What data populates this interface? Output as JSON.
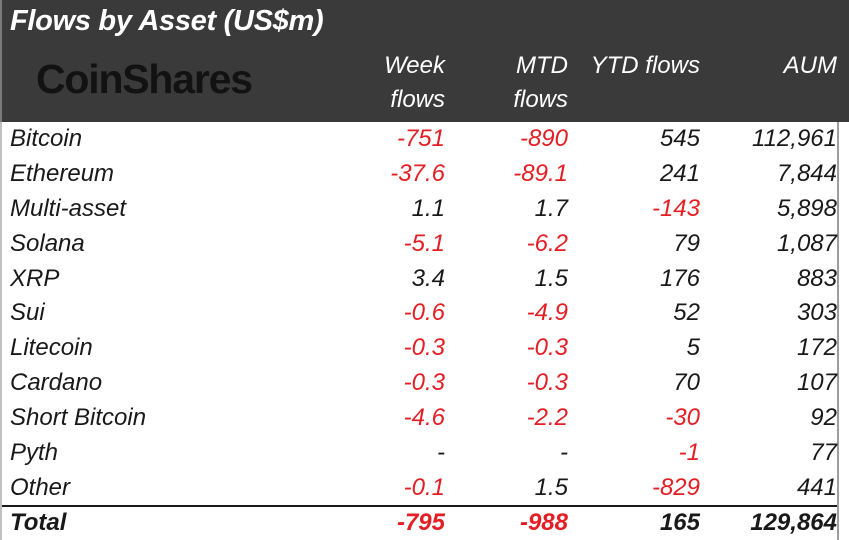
{
  "header": {
    "title": "Flows by Asset (US$m)",
    "logo_text": "CoinShares",
    "columns": [
      {
        "id": "week",
        "line1": "Week",
        "line2": "flows"
      },
      {
        "id": "mtd",
        "line1": "MTD",
        "line2": "flows"
      },
      {
        "id": "ytd",
        "line1": "",
        "line2": "YTD flows"
      },
      {
        "id": "aum",
        "line1": "",
        "line2": "AUM"
      }
    ]
  },
  "colors": {
    "header_bg": "#3a3a3a",
    "header_text": "#ffffff",
    "logo_color": "#121212",
    "body_text": "#191919",
    "negative": "#e31e24",
    "border_gray": "#9e9e9e",
    "total_rule": "#1a1a1a"
  },
  "table": {
    "rows": [
      {
        "asset": "Bitcoin",
        "week": "-751",
        "mtd": "-890",
        "ytd": "545",
        "aum": "112,961"
      },
      {
        "asset": "Ethereum",
        "week": "-37.6",
        "mtd": "-89.1",
        "ytd": "241",
        "aum": "7,844"
      },
      {
        "asset": "Multi-asset",
        "week": "1.1",
        "mtd": "1.7",
        "ytd": "-143",
        "aum": "5,898"
      },
      {
        "asset": "Solana",
        "week": "-5.1",
        "mtd": "-6.2",
        "ytd": "79",
        "aum": "1,087"
      },
      {
        "asset": "XRP",
        "week": "3.4",
        "mtd": "1.5",
        "ytd": "176",
        "aum": "883"
      },
      {
        "asset": "Sui",
        "week": "-0.6",
        "mtd": "-4.9",
        "ytd": "52",
        "aum": "303"
      },
      {
        "asset": "Litecoin",
        "week": "-0.3",
        "mtd": "-0.3",
        "ytd": "5",
        "aum": "172"
      },
      {
        "asset": "Cardano",
        "week": "-0.3",
        "mtd": "-0.3",
        "ytd": "70",
        "aum": "107"
      },
      {
        "asset": "Short Bitcoin",
        "week": "-4.6",
        "mtd": "-2.2",
        "ytd": "-30",
        "aum": "92"
      },
      {
        "asset": "Pyth",
        "week": "-",
        "mtd": "-",
        "ytd": "-1",
        "aum": "77"
      },
      {
        "asset": "Other",
        "week": "-0.1",
        "mtd": "1.5",
        "ytd": "-829",
        "aum": "441"
      }
    ],
    "total": {
      "asset": "Total",
      "week": "-795",
      "mtd": "-988",
      "ytd": "165",
      "aum": "129,864"
    }
  },
  "chart_data": {
    "type": "table",
    "title": "Flows by Asset (US$m)",
    "columns": [
      "Asset",
      "Week flows",
      "MTD flows",
      "YTD flows",
      "AUM"
    ],
    "rows": [
      [
        "Bitcoin",
        -751,
        -890,
        545,
        112961
      ],
      [
        "Ethereum",
        -37.6,
        -89.1,
        241,
        7844
      ],
      [
        "Multi-asset",
        1.1,
        1.7,
        -143,
        5898
      ],
      [
        "Solana",
        -5.1,
        -6.2,
        79,
        1087
      ],
      [
        "XRP",
        3.4,
        1.5,
        176,
        883
      ],
      [
        "Sui",
        -0.6,
        -4.9,
        52,
        303
      ],
      [
        "Litecoin",
        -0.3,
        -0.3,
        5,
        172
      ],
      [
        "Cardano",
        -0.3,
        -0.3,
        70,
        107
      ],
      [
        "Short Bitcoin",
        -4.6,
        -2.2,
        -30,
        92
      ],
      [
        "Pyth",
        null,
        null,
        -1,
        77
      ],
      [
        "Other",
        -0.1,
        1.5,
        -829,
        441
      ]
    ],
    "total": [
      "Total",
      -795,
      -988,
      165,
      129864
    ],
    "notes": "Negative values shown in red; Total row bold with rule above"
  }
}
